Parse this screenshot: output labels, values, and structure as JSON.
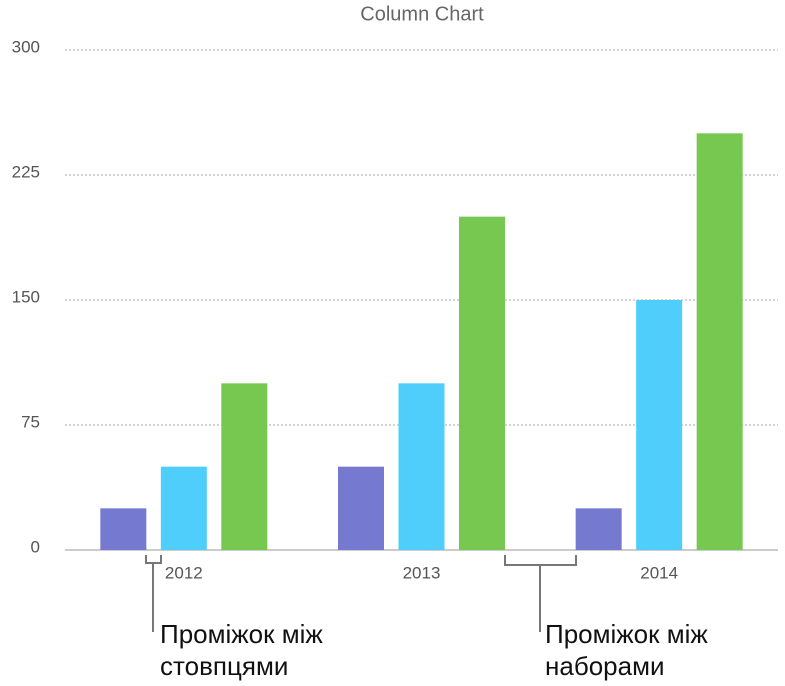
{
  "chart_data": {
    "type": "bar",
    "title": "Column Chart",
    "categories": [
      "2012",
      "2013",
      "2014"
    ],
    "series": [
      {
        "color": "#7579d0",
        "values": [
          25,
          50,
          25
        ]
      },
      {
        "color": "#4fcdfb",
        "values": [
          50,
          100,
          150
        ]
      },
      {
        "color": "#76c851",
        "values": [
          100,
          200,
          250
        ]
      }
    ],
    "ylim": [
      0,
      300
    ],
    "yticks": [
      0,
      75,
      150,
      225,
      300
    ],
    "grid": true,
    "annotations": [
      {
        "lines": [
          "Проміжок між",
          "стовпцями"
        ]
      },
      {
        "lines": [
          "Проміжок між",
          "наборами"
        ]
      }
    ]
  }
}
